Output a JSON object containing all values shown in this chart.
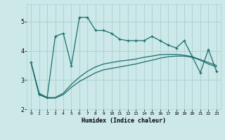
{
  "xlabel": "Humidex (Indice chaleur)",
  "background_color": "#cce8e8",
  "grid_color": "#aad0d0",
  "line_color": "#1a6e6e",
  "xlim": [
    -0.5,
    23.5
  ],
  "ylim": [
    2.0,
    5.6
  ],
  "yticks": [
    2,
    3,
    4,
    5
  ],
  "xticks": [
    0,
    1,
    2,
    3,
    4,
    5,
    6,
    7,
    8,
    9,
    10,
    11,
    12,
    13,
    14,
    15,
    16,
    17,
    18,
    19,
    20,
    21,
    22,
    23
  ],
  "line1_x": [
    0,
    1,
    2,
    3,
    4,
    5,
    6,
    7,
    8,
    9,
    10,
    11,
    12,
    13,
    14,
    15,
    16,
    17,
    18,
    19,
    20,
    21,
    22,
    23
  ],
  "line1_y": [
    3.6,
    2.5,
    2.4,
    4.5,
    4.6,
    3.5,
    5.15,
    5.15,
    4.7,
    4.7,
    4.6,
    4.4,
    4.35,
    4.35,
    4.35,
    4.5,
    4.35,
    4.2,
    4.1,
    4.35,
    3.8,
    3.25,
    4.05,
    3.3
  ],
  "line2_x": [
    0,
    1,
    2,
    3,
    4,
    5,
    6,
    7,
    8,
    9,
    10,
    11,
    12,
    13,
    14,
    15,
    16,
    17,
    18,
    19,
    20,
    21,
    22,
    23
  ],
  "line2_y": [
    3.6,
    2.55,
    2.4,
    2.4,
    2.55,
    2.85,
    3.1,
    3.3,
    3.45,
    3.55,
    3.6,
    3.65,
    3.68,
    3.72,
    3.78,
    3.82,
    3.87,
    3.88,
    3.88,
    3.85,
    3.8,
    3.7,
    3.6,
    3.5
  ],
  "line3_x": [
    0,
    1,
    2,
    3,
    4,
    5,
    6,
    7,
    8,
    9,
    10,
    11,
    12,
    13,
    14,
    15,
    16,
    17,
    18,
    19,
    20,
    21,
    22,
    23
  ],
  "line3_y": [
    3.6,
    2.5,
    2.38,
    2.38,
    2.5,
    2.75,
    2.95,
    3.1,
    3.25,
    3.35,
    3.4,
    3.45,
    3.5,
    3.55,
    3.62,
    3.68,
    3.75,
    3.8,
    3.82,
    3.82,
    3.78,
    3.68,
    3.55,
    3.45
  ]
}
